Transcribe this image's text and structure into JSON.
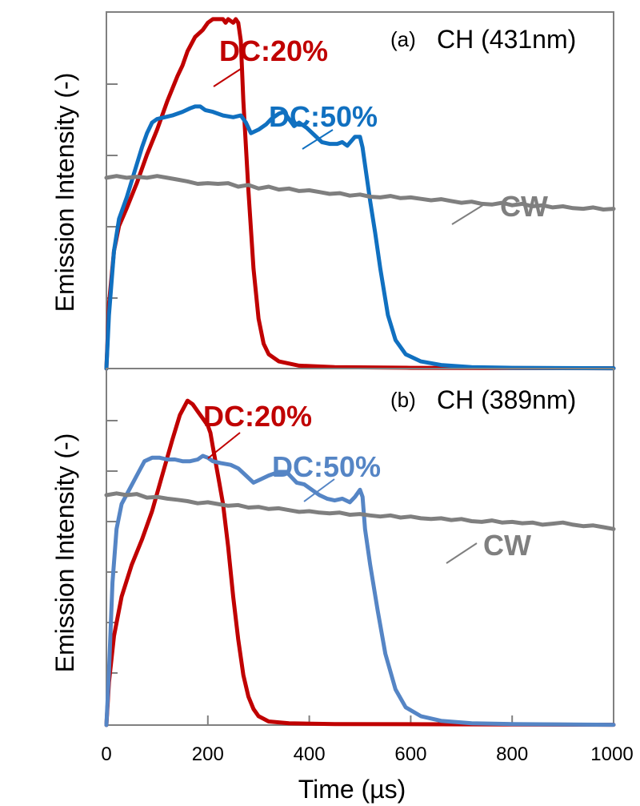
{
  "chart_data": [
    {
      "panel_label": "(a)",
      "title": "CH (431nm)",
      "type": "line",
      "ylabel": "Emission Intensity (-)",
      "xlim": [
        0,
        1000
      ],
      "ylim": [
        0,
        1
      ],
      "series": [
        {
          "name": "DC:20%",
          "color": "#c00000",
          "points": [
            [
              0,
              0
            ],
            [
              5,
              0.18
            ],
            [
              15,
              0.33
            ],
            [
              25,
              0.4
            ],
            [
              40,
              0.45
            ],
            [
              60,
              0.52
            ],
            [
              80,
              0.6
            ],
            [
              100,
              0.67
            ],
            [
              120,
              0.75
            ],
            [
              140,
              0.82
            ],
            [
              150,
              0.85
            ],
            [
              160,
              0.89
            ],
            [
              175,
              0.93
            ],
            [
              190,
              0.95
            ],
            [
              200,
              0.97
            ],
            [
              210,
              0.98
            ],
            [
              220,
              0.98
            ],
            [
              230,
              0.98
            ],
            [
              235,
              0.97
            ],
            [
              240,
              0.98
            ],
            [
              250,
              0.97
            ],
            [
              255,
              0.98
            ],
            [
              260,
              0.97
            ],
            [
              265,
              0.92
            ],
            [
              270,
              0.75
            ],
            [
              280,
              0.5
            ],
            [
              290,
              0.28
            ],
            [
              300,
              0.14
            ],
            [
              310,
              0.07
            ],
            [
              320,
              0.04
            ],
            [
              340,
              0.02
            ],
            [
              380,
              0.008
            ],
            [
              450,
              0.004
            ],
            [
              600,
              0.002
            ],
            [
              1000,
              0.001
            ]
          ]
        },
        {
          "name": "DC:50%",
          "color": "#1070c0",
          "points": [
            [
              0,
              0
            ],
            [
              5,
              0.15
            ],
            [
              15,
              0.33
            ],
            [
              25,
              0.42
            ],
            [
              40,
              0.48
            ],
            [
              55,
              0.55
            ],
            [
              70,
              0.62
            ],
            [
              80,
              0.66
            ],
            [
              90,
              0.69
            ],
            [
              100,
              0.7
            ],
            [
              115,
              0.705
            ],
            [
              130,
              0.71
            ],
            [
              150,
              0.72
            ],
            [
              165,
              0.73
            ],
            [
              175,
              0.735
            ],
            [
              185,
              0.735
            ],
            [
              195,
              0.725
            ],
            [
              210,
              0.72
            ],
            [
              230,
              0.71
            ],
            [
              250,
              0.705
            ],
            [
              265,
              0.71
            ],
            [
              275,
              0.69
            ],
            [
              285,
              0.66
            ],
            [
              300,
              0.67
            ],
            [
              315,
              0.685
            ],
            [
              325,
              0.7
            ],
            [
              340,
              0.715
            ],
            [
              350,
              0.72
            ],
            [
              360,
              0.7
            ],
            [
              370,
              0.68
            ],
            [
              380,
              0.69
            ],
            [
              395,
              0.675
            ],
            [
              410,
              0.655
            ],
            [
              425,
              0.635
            ],
            [
              440,
              0.63
            ],
            [
              455,
              0.63
            ],
            [
              465,
              0.635
            ],
            [
              475,
              0.625
            ],
            [
              490,
              0.65
            ],
            [
              500,
              0.65
            ],
            [
              505,
              0.62
            ],
            [
              512,
              0.55
            ],
            [
              520,
              0.47
            ],
            [
              530,
              0.38
            ],
            [
              540,
              0.28
            ],
            [
              555,
              0.15
            ],
            [
              570,
              0.08
            ],
            [
              590,
              0.04
            ],
            [
              620,
              0.02
            ],
            [
              660,
              0.01
            ],
            [
              720,
              0.004
            ],
            [
              800,
              0.002
            ],
            [
              1000,
              0.001
            ]
          ]
        },
        {
          "name": "CW",
          "color": "#7f7f7f",
          "points": [
            [
              0,
              0.535
            ],
            [
              20,
              0.54
            ],
            [
              40,
              0.535
            ],
            [
              60,
              0.538
            ],
            [
              80,
              0.535
            ],
            [
              100,
              0.54
            ],
            [
              120,
              0.535
            ],
            [
              140,
              0.53
            ],
            [
              160,
              0.525
            ],
            [
              180,
              0.518
            ],
            [
              200,
              0.52
            ],
            [
              220,
              0.518
            ],
            [
              240,
              0.52
            ],
            [
              260,
              0.51
            ],
            [
              280,
              0.515
            ],
            [
              300,
              0.505
            ],
            [
              320,
              0.51
            ],
            [
              340,
              0.502
            ],
            [
              360,
              0.505
            ],
            [
              380,
              0.498
            ],
            [
              400,
              0.5
            ],
            [
              420,
              0.495
            ],
            [
              440,
              0.49
            ],
            [
              460,
              0.492
            ],
            [
              480,
              0.485
            ],
            [
              500,
              0.488
            ],
            [
              520,
              0.482
            ],
            [
              540,
              0.48
            ],
            [
              560,
              0.484
            ],
            [
              580,
              0.478
            ],
            [
              600,
              0.48
            ],
            [
              620,
              0.476
            ],
            [
              640,
              0.472
            ],
            [
              660,
              0.475
            ],
            [
              680,
              0.47
            ],
            [
              700,
              0.465
            ],
            [
              720,
              0.468
            ],
            [
              740,
              0.462
            ],
            [
              760,
              0.46
            ],
            [
              780,
              0.465
            ],
            [
              800,
              0.458
            ],
            [
              820,
              0.462
            ],
            [
              840,
              0.455
            ],
            [
              860,
              0.458
            ],
            [
              880,
              0.452
            ],
            [
              900,
              0.455
            ],
            [
              920,
              0.45
            ],
            [
              940,
              0.448
            ],
            [
              960,
              0.452
            ],
            [
              980,
              0.446
            ],
            [
              1000,
              0.448
            ]
          ]
        }
      ]
    },
    {
      "panel_label": "(b)",
      "title": "CH (389nm)",
      "type": "line",
      "ylabel": "Emission Intensity (-)",
      "xlabel": "Time (µs)",
      "xlim": [
        0,
        1000
      ],
      "ylim": [
        0,
        1
      ],
      "x_ticks": [
        0,
        200,
        400,
        600,
        800,
        1000
      ],
      "series": [
        {
          "name": "DC:20%",
          "color": "#c00000",
          "points": [
            [
              0,
              0
            ],
            [
              5,
              0.12
            ],
            [
              15,
              0.25
            ],
            [
              30,
              0.36
            ],
            [
              50,
              0.45
            ],
            [
              70,
              0.52
            ],
            [
              90,
              0.6
            ],
            [
              110,
              0.7
            ],
            [
              130,
              0.8
            ],
            [
              145,
              0.87
            ],
            [
              160,
              0.91
            ],
            [
              170,
              0.9
            ],
            [
              180,
              0.88
            ],
            [
              190,
              0.86
            ],
            [
              200,
              0.84
            ],
            [
              205,
              0.82
            ],
            [
              210,
              0.78
            ],
            [
              220,
              0.7
            ],
            [
              230,
              0.62
            ],
            [
              240,
              0.5
            ],
            [
              250,
              0.36
            ],
            [
              260,
              0.24
            ],
            [
              270,
              0.14
            ],
            [
              280,
              0.08
            ],
            [
              290,
              0.045
            ],
            [
              300,
              0.025
            ],
            [
              320,
              0.01
            ],
            [
              360,
              0.005
            ],
            [
              450,
              0.003
            ],
            [
              1000,
              0.001
            ]
          ]
        },
        {
          "name": "DC:50%",
          "color": "#5585c5",
          "points": [
            [
              0,
              0
            ],
            [
              5,
              0.15
            ],
            [
              12,
              0.4
            ],
            [
              20,
              0.55
            ],
            [
              30,
              0.62
            ],
            [
              45,
              0.66
            ],
            [
              60,
              0.7
            ],
            [
              75,
              0.74
            ],
            [
              90,
              0.75
            ],
            [
              105,
              0.75
            ],
            [
              120,
              0.745
            ],
            [
              135,
              0.745
            ],
            [
              150,
              0.74
            ],
            [
              165,
              0.74
            ],
            [
              180,
              0.745
            ],
            [
              190,
              0.755
            ],
            [
              200,
              0.75
            ],
            [
              210,
              0.74
            ],
            [
              225,
              0.735
            ],
            [
              245,
              0.73
            ],
            [
              260,
              0.72
            ],
            [
              275,
              0.7
            ],
            [
              290,
              0.68
            ],
            [
              305,
              0.69
            ],
            [
              320,
              0.7
            ],
            [
              340,
              0.71
            ],
            [
              355,
              0.71
            ],
            [
              365,
              0.695
            ],
            [
              375,
              0.68
            ],
            [
              390,
              0.675
            ],
            [
              405,
              0.66
            ],
            [
              420,
              0.645
            ],
            [
              435,
              0.635
            ],
            [
              450,
              0.63
            ],
            [
              465,
              0.635
            ],
            [
              480,
              0.625
            ],
            [
              490,
              0.64
            ],
            [
              500,
              0.66
            ],
            [
              505,
              0.64
            ],
            [
              510,
              0.55
            ],
            [
              520,
              0.45
            ],
            [
              535,
              0.32
            ],
            [
              550,
              0.2
            ],
            [
              570,
              0.1
            ],
            [
              590,
              0.05
            ],
            [
              620,
              0.025
            ],
            [
              660,
              0.012
            ],
            [
              720,
              0.005
            ],
            [
              800,
              0.003
            ],
            [
              1000,
              0.001
            ]
          ]
        },
        {
          "name": "CW",
          "color": "#7f7f7f",
          "points": [
            [
              0,
              0.645
            ],
            [
              20,
              0.65
            ],
            [
              40,
              0.645
            ],
            [
              60,
              0.648
            ],
            [
              80,
              0.638
            ],
            [
              100,
              0.64
            ],
            [
              120,
              0.635
            ],
            [
              140,
              0.632
            ],
            [
              160,
              0.628
            ],
            [
              180,
              0.622
            ],
            [
              200,
              0.625
            ],
            [
              220,
              0.62
            ],
            [
              240,
              0.615
            ],
            [
              260,
              0.617
            ],
            [
              280,
              0.61
            ],
            [
              300,
              0.612
            ],
            [
              320,
              0.606
            ],
            [
              340,
              0.608
            ],
            [
              360,
              0.603
            ],
            [
              380,
              0.598
            ],
            [
              400,
              0.6
            ],
            [
              420,
              0.596
            ],
            [
              440,
              0.594
            ],
            [
              460,
              0.596
            ],
            [
              480,
              0.59
            ],
            [
              500,
              0.592
            ],
            [
              520,
              0.588
            ],
            [
              540,
              0.585
            ],
            [
              560,
              0.588
            ],
            [
              580,
              0.582
            ],
            [
              600,
              0.585
            ],
            [
              620,
              0.58
            ],
            [
              640,
              0.578
            ],
            [
              660,
              0.58
            ],
            [
              680,
              0.575
            ],
            [
              700,
              0.578
            ],
            [
              720,
              0.572
            ],
            [
              740,
              0.57
            ],
            [
              760,
              0.574
            ],
            [
              780,
              0.568
            ],
            [
              800,
              0.57
            ],
            [
              820,
              0.566
            ],
            [
              840,
              0.568
            ],
            [
              860,
              0.562
            ],
            [
              880,
              0.565
            ],
            [
              900,
              0.568
            ],
            [
              920,
              0.562
            ],
            [
              940,
              0.558
            ],
            [
              960,
              0.56
            ],
            [
              980,
              0.555
            ],
            [
              1000,
              0.55
            ]
          ]
        }
      ]
    }
  ]
}
